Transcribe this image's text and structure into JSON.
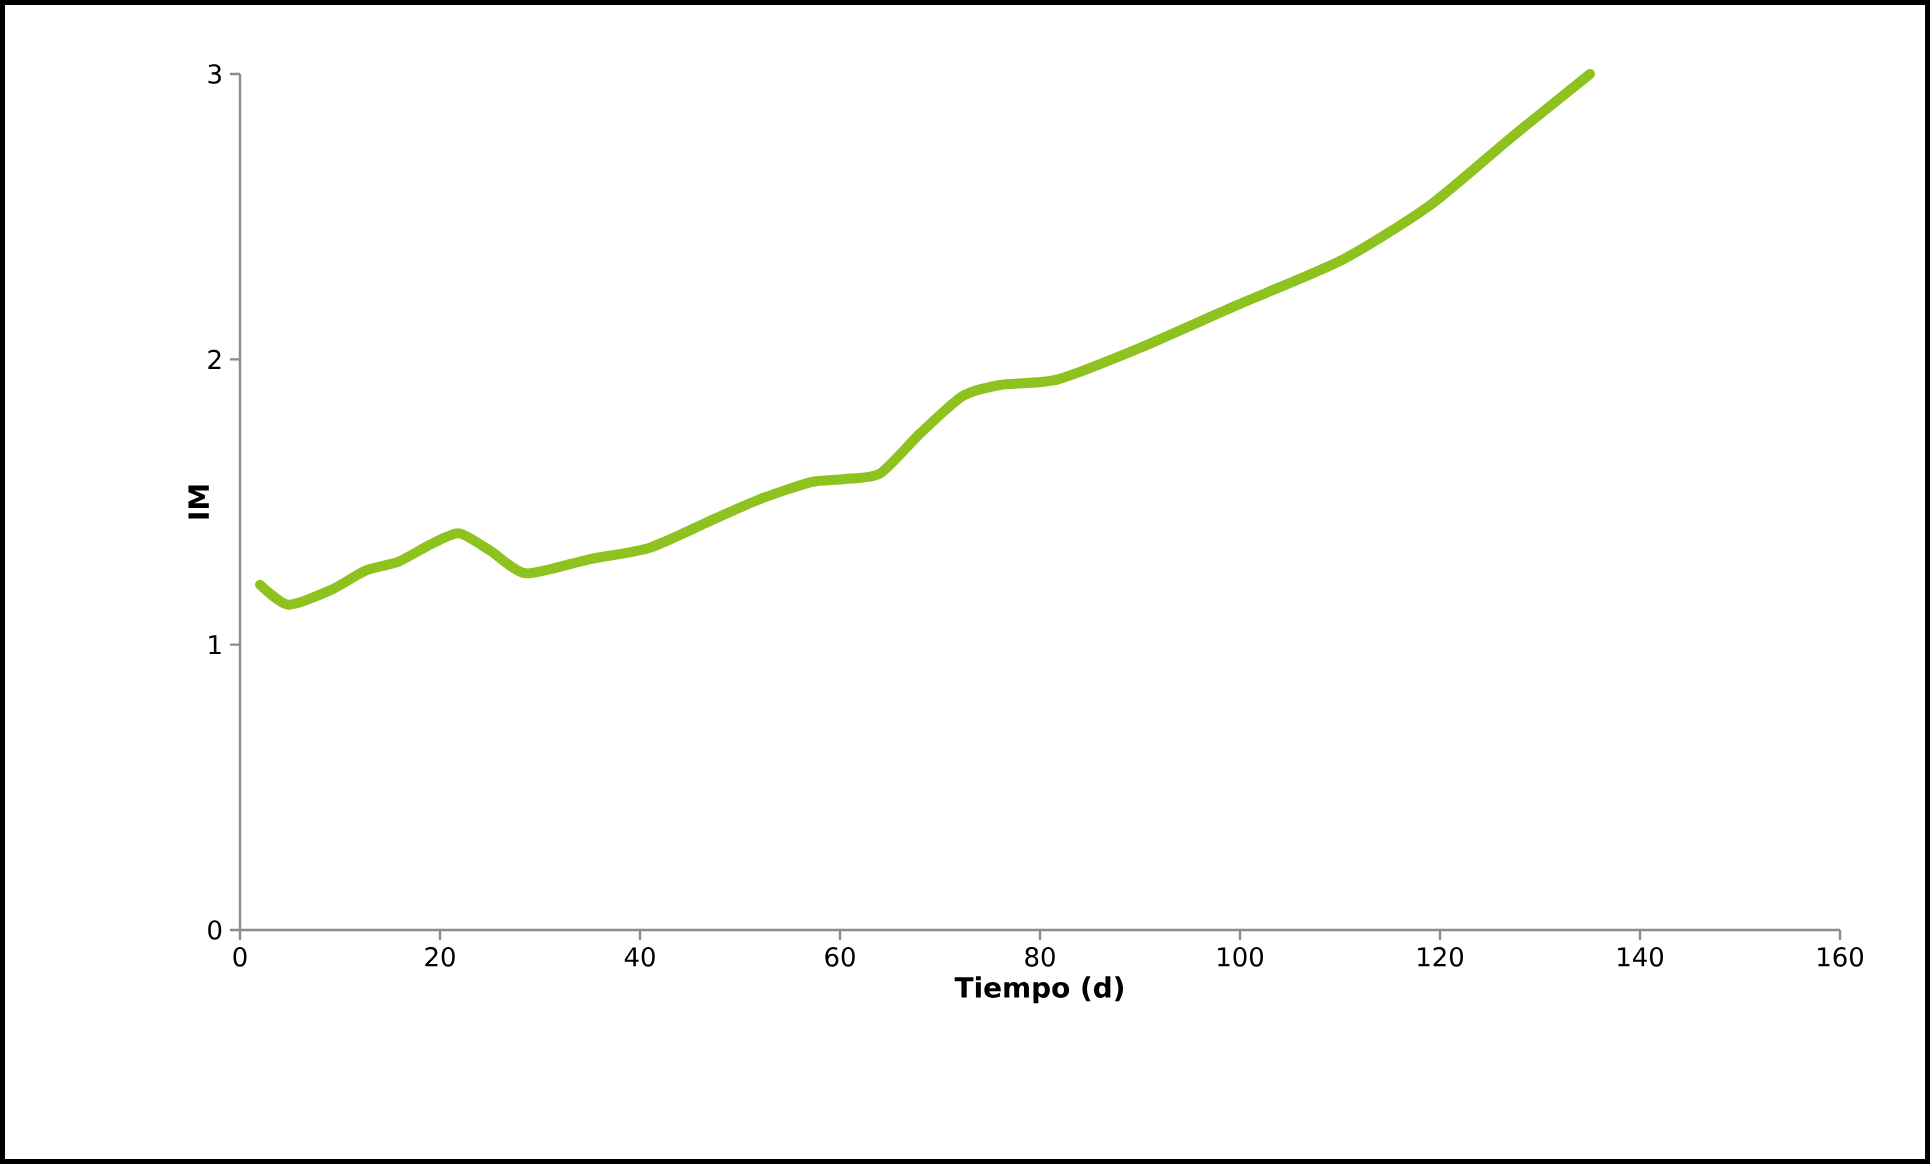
{
  "chart_data": {
    "type": "line",
    "xlabel": "Tiempo (d)",
    "ylabel": "IM",
    "xlim": [
      0,
      160
    ],
    "ylim": [
      0,
      3
    ],
    "xticks": [
      0,
      20,
      40,
      60,
      80,
      100,
      120,
      140,
      160
    ],
    "yticks": [
      0,
      1,
      2,
      3
    ],
    "grid": false,
    "marker": "none",
    "line_style": "solid",
    "series": [
      {
        "color": "#8dc21f",
        "x": [
          2,
          4.8,
          9,
          12.6,
          15.8,
          19,
          21.9,
          25,
          28.6,
          35,
          41,
          47.4,
          52,
          57.1,
          60.3,
          64,
          68,
          72.2,
          76,
          81.8,
          90,
          99.7,
          110.3,
          119,
          127.2,
          135
        ],
        "values": [
          1.21,
          1.14,
          1.19,
          1.26,
          1.29,
          1.35,
          1.39,
          1.33,
          1.25,
          1.3,
          1.34,
          1.44,
          1.51,
          1.57,
          1.58,
          1.6,
          1.74,
          1.87,
          1.91,
          1.93,
          2.04,
          2.19,
          2.35,
          2.54,
          2.78,
          3.0
        ]
      }
    ]
  }
}
